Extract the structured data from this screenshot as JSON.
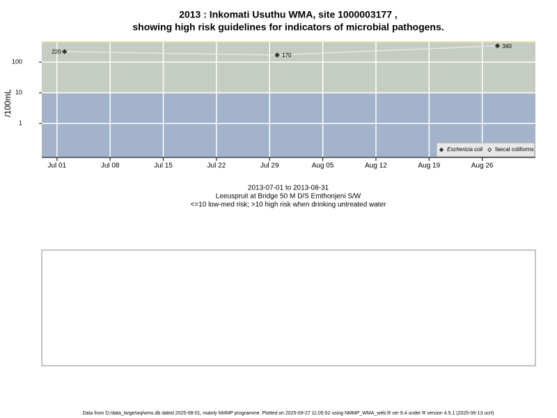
{
  "chart_data": {
    "type": "scatter",
    "title": "2013 : Inkomati Usuthu WMA, site 1000003177 ,",
    "title_line2": "showing high risk guidelines for indicators of microbial pathogens.",
    "y_label": "/100mL",
    "x": [
      "Jul 02",
      "Jul 30",
      "Aug 28"
    ],
    "xlim": [
      "Jun 29",
      "Sep 02"
    ],
    "xticks": [
      "Jul 01",
      "Jul 08",
      "Jul 15",
      "Jul 22",
      "Jul 29",
      "Aug 05",
      "Aug 12",
      "Aug 19",
      "Aug 26"
    ],
    "ylim": [
      0.078,
      460
    ],
    "yticks": [
      1,
      10,
      100
    ],
    "log_y": true,
    "grid": true,
    "threshold": 10,
    "band_colors": [
      "#a3b3cb",
      "#c5ccc1"
    ],
    "line_color": "#e6e6e6",
    "series": [
      {
        "name": "Eschericia coli",
        "color": "#333333",
        "values": [
          220,
          170,
          340
        ]
      },
      {
        "name": "faecal coliforms",
        "color": "#333333",
        "values": [
          null,
          null,
          null
        ]
      }
    ],
    "legend": "bottom-right",
    "notes": [
      "2013-07-01 to 2013-08-31",
      "Leeuspruit at Bridge 50 M D/S Emthonjeni S/W",
      "<=10 low-med risk; >10 high risk when drinking untreated water"
    ],
    "footer": "Data from D:/data_large/wq/wms.db dated 2025-08-01, mainly NMMP programme. Plotted on 2025-09-27 11:05:52 using NMMP_WMA_web.R ver 9.4 under R version 4.5.1 (2025-06-13 ucrt)"
  }
}
